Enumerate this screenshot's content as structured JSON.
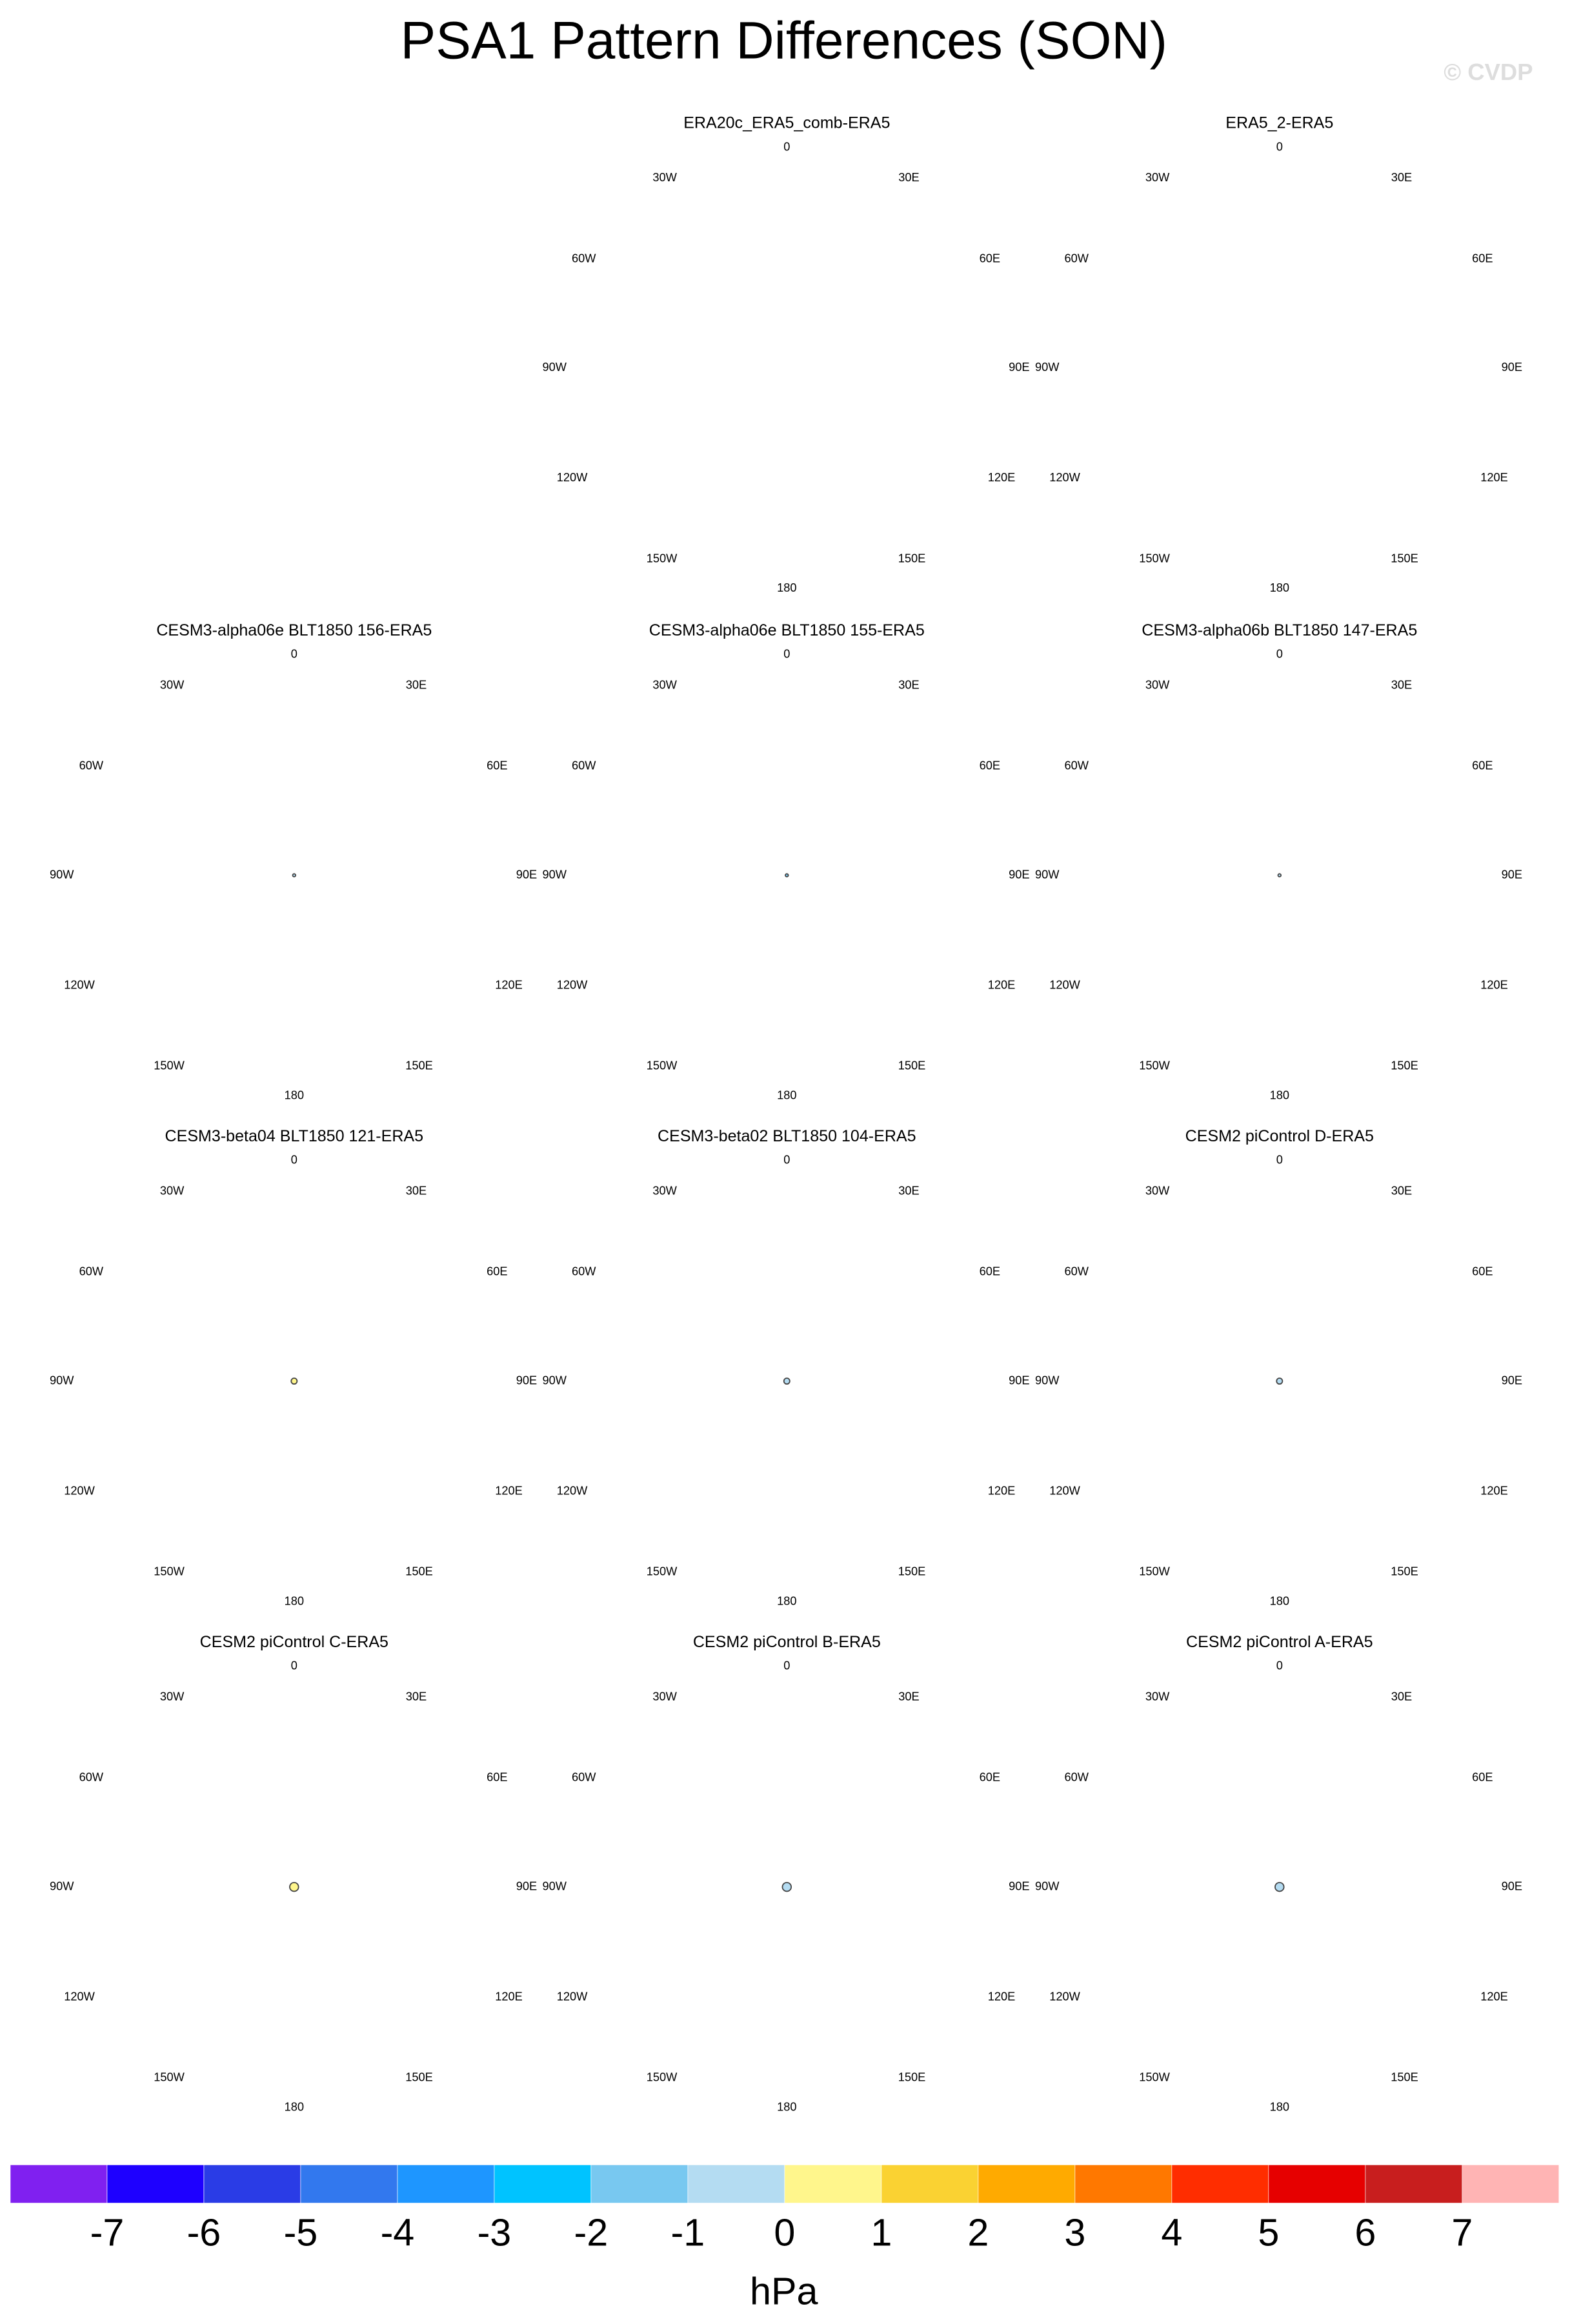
{
  "title": "PSA1 Pattern Differences (SON)",
  "watermark": "© CVDP",
  "longitude_labels": [
    "0",
    "30E",
    "60E",
    "90E",
    "120E",
    "150E",
    "180",
    "150W",
    "120W",
    "90W",
    "60W",
    "30W"
  ],
  "panels": [
    {
      "title": "ERA20c_ERA5_comb-ERA5"
    },
    {
      "title": "ERA5_2-ERA5"
    },
    {
      "title": "CESM3-alpha06e BLT1850 156-ERA5"
    },
    {
      "title": "CESM3-alpha06e BLT1850 155-ERA5"
    },
    {
      "title": "CESM3-alpha06b BLT1850 147-ERA5"
    },
    {
      "title": "CESM3-beta04 BLT1850 121-ERA5"
    },
    {
      "title": "CESM3-beta02 BLT1850 104-ERA5"
    },
    {
      "title": "CESM2 piControl D-ERA5"
    },
    {
      "title": "CESM2 piControl C-ERA5"
    },
    {
      "title": "CESM2 piControl B-ERA5"
    },
    {
      "title": "CESM2 piControl A-ERA5"
    }
  ],
  "colorbar": {
    "colors": [
      "#8020f0",
      "#1e00ff",
      "#2a3ce6",
      "#3278ee",
      "#1e96ff",
      "#00c3ff",
      "#78c8f0",
      "#b4dcf2",
      "#fff68c",
      "#fad232",
      "#ffaa00",
      "#ff7800",
      "#ff2d00",
      "#e60000",
      "#c81e1e",
      "#ffb4b4"
    ],
    "levels": [
      -7,
      -6,
      -5,
      -4,
      -3,
      -2,
      -1,
      0,
      1,
      2,
      3,
      4,
      5,
      6,
      7
    ],
    "units": "hPa"
  }
}
